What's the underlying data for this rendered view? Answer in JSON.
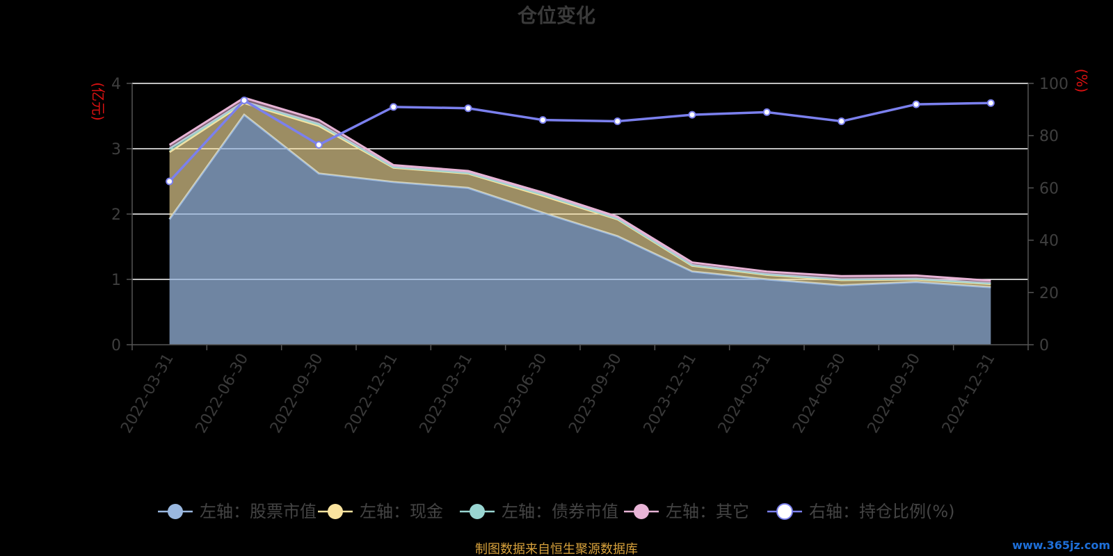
{
  "chart_data": {
    "type": "area",
    "title": "仓位变化",
    "left_axis_unit": "(亿元)",
    "right_axis_unit": "(%)",
    "categories": [
      "2022-03-31",
      "2022-06-30",
      "2022-09-30",
      "2022-12-31",
      "2023-03-31",
      "2023-06-30",
      "2023-09-30",
      "2023-12-31",
      "2024-03-31",
      "2024-06-30",
      "2024-09-30",
      "2024-12-31"
    ],
    "left_ylim": [
      0,
      4
    ],
    "left_yticks": [
      0,
      1,
      2,
      3,
      4
    ],
    "right_ylim": [
      0,
      100
    ],
    "right_yticks": [
      0,
      20,
      40,
      60,
      80,
      100
    ],
    "grid": true,
    "legend_position": "bottom",
    "series": [
      {
        "name": "左轴：股票市值",
        "axis": "left",
        "kind": "stacked-area",
        "color": "#9ab8e0",
        "values": [
          1.92,
          3.52,
          2.62,
          2.49,
          2.4,
          2.02,
          1.66,
          1.12,
          1.0,
          0.91,
          0.96,
          0.88
        ]
      },
      {
        "name": "左轴：现金",
        "axis": "left",
        "kind": "stacked-area",
        "color": "#fbe49f",
        "values": [
          1.03,
          0.18,
          0.73,
          0.22,
          0.22,
          0.26,
          0.26,
          0.09,
          0.07,
          0.08,
          0.04,
          0.05
        ]
      },
      {
        "name": "左轴：债券市值",
        "axis": "left",
        "kind": "stacked-area",
        "color": "#99d6d2",
        "values": [
          0.05,
          0.02,
          0.03,
          0.01,
          0.01,
          0.02,
          0.01,
          0.01,
          0.01,
          0.01,
          0.01,
          0.01
        ]
      },
      {
        "name": "左轴：其它",
        "axis": "left",
        "kind": "stacked-area",
        "color": "#e8b4d6",
        "values": [
          0.06,
          0.06,
          0.06,
          0.03,
          0.03,
          0.03,
          0.03,
          0.04,
          0.04,
          0.05,
          0.05,
          0.04
        ]
      },
      {
        "name": "右轴：持仓比例(%)",
        "axis": "right",
        "kind": "line",
        "color": "#7b80ee",
        "values": [
          62.5,
          93.5,
          76.5,
          91.0,
          90.5,
          86.0,
          85.5,
          88.0,
          89.0,
          85.5,
          92.0,
          92.5
        ]
      }
    ],
    "source_text": "制图数据来自恒生聚源数据库",
    "watermark": "www.365jz.com"
  }
}
